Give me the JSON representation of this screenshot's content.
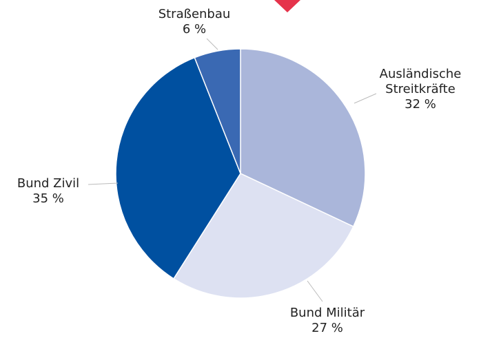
{
  "chart_data": {
    "type": "pie",
    "categories": [
      "Ausländische Streitkräfte",
      "Bund Militär",
      "Bund Zivil",
      "Straßenbau"
    ],
    "values": [
      32,
      27,
      35,
      6
    ],
    "value_labels": [
      "32 %",
      "27 %",
      "35 %",
      "6 %"
    ],
    "colors": [
      "#aab6da",
      "#dde1f2",
      "#0050a0",
      "#3a69b3"
    ]
  }
}
